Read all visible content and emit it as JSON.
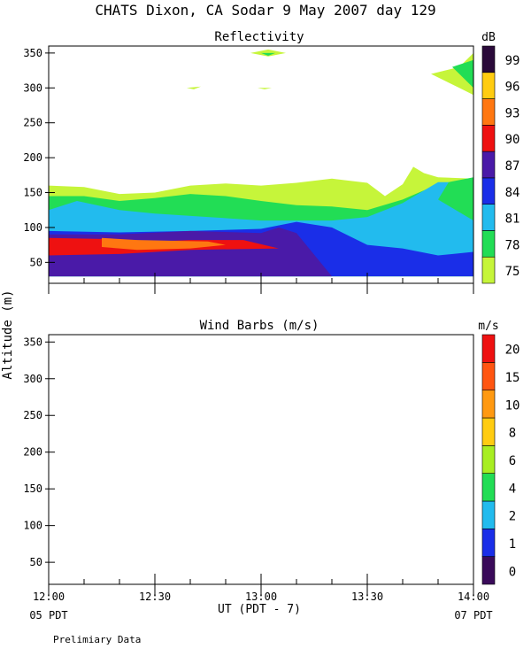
{
  "title": "CHATS Dixon, CA  Sodar   9 May 2007  day 129",
  "ylabel": "Altitude (m)",
  "footer_note": "Prelimiary Data",
  "chart_data": [
    {
      "type": "heatmap",
      "title": "Reflectivity",
      "x_ticks": [
        "12:00",
        "12:30",
        "13:00",
        "13:30",
        "14:00"
      ],
      "x_range_minutes_after_1200UT": [
        0,
        120
      ],
      "ylim": [
        20,
        360
      ],
      "y_ticks": [
        50,
        100,
        150,
        200,
        250,
        300,
        350
      ],
      "colorbar": {
        "unit": "dB",
        "levels": [
          75,
          78,
          81,
          84,
          87,
          90,
          93,
          96,
          99
        ],
        "colors": [
          "#c6f53a",
          "#22dd55",
          "#22bbee",
          "#1a2ee8",
          "#4a1aa8",
          "#ee1111",
          "#ff7711",
          "#ffcc11",
          "#2a0a3a"
        ]
      },
      "contours": [
        {
          "level": 75,
          "polygon": [
            [
              0,
              160
            ],
            [
              10,
              158
            ],
            [
              20,
              148
            ],
            [
              30,
              150
            ],
            [
              40,
              160
            ],
            [
              50,
              163
            ],
            [
              60,
              160
            ],
            [
              70,
              164
            ],
            [
              80,
              170
            ],
            [
              90,
              164
            ],
            [
              95,
              145
            ],
            [
              100,
              162
            ],
            [
              103,
              187
            ],
            [
              106,
              178
            ],
            [
              110,
              172
            ],
            [
              120,
              170
            ],
            [
              120,
              30
            ],
            [
              0,
              30
            ]
          ]
        },
        {
          "level": 78,
          "polygon": [
            [
              0,
              145
            ],
            [
              10,
              145
            ],
            [
              20,
              138
            ],
            [
              30,
              142
            ],
            [
              40,
              148
            ],
            [
              50,
              145
            ],
            [
              60,
              138
            ],
            [
              70,
              132
            ],
            [
              80,
              130
            ],
            [
              90,
              125
            ],
            [
              100,
              140
            ],
            [
              110,
              162
            ],
            [
              120,
              172
            ],
            [
              120,
              30
            ],
            [
              0,
              30
            ]
          ]
        },
        {
          "level": 81,
          "polygon": [
            [
              0,
              125
            ],
            [
              8,
              138
            ],
            [
              20,
              125
            ],
            [
              30,
              120
            ],
            [
              45,
              115
            ],
            [
              60,
              110
            ],
            [
              80,
              110
            ],
            [
              90,
              115
            ],
            [
              100,
              135
            ],
            [
              110,
              165
            ],
            [
              113,
              165
            ],
            [
              110,
              140
            ],
            [
              120,
              110
            ],
            [
              120,
              30
            ],
            [
              0,
              30
            ]
          ]
        },
        {
          "level": 84,
          "polygon": [
            [
              0,
              95
            ],
            [
              20,
              93
            ],
            [
              40,
              95
            ],
            [
              60,
              98
            ],
            [
              70,
              108
            ],
            [
              80,
              100
            ],
            [
              90,
              75
            ],
            [
              100,
              70
            ],
            [
              110,
              60
            ],
            [
              120,
              65
            ],
            [
              120,
              30
            ],
            [
              0,
              30
            ]
          ]
        },
        {
          "level": 87,
          "polygon": [
            [
              0,
              90
            ],
            [
              20,
              90
            ],
            [
              40,
              95
            ],
            [
              60,
              92
            ],
            [
              65,
              100
            ],
            [
              70,
              92
            ],
            [
              80,
              30
            ],
            [
              0,
              30
            ]
          ]
        },
        {
          "level": 90,
          "polygon": [
            [
              0,
              85
            ],
            [
              20,
              83
            ],
            [
              30,
              80
            ],
            [
              40,
              82
            ],
            [
              55,
              82
            ],
            [
              65,
              70
            ],
            [
              40,
              68
            ],
            [
              20,
              62
            ],
            [
              0,
              60
            ]
          ]
        },
        {
          "level": 93,
          "polygon": [
            [
              15,
              85
            ],
            [
              25,
              82
            ],
            [
              45,
              80
            ],
            [
              50,
              75
            ],
            [
              40,
              70
            ],
            [
              25,
              68
            ],
            [
              15,
              72
            ]
          ]
        }
      ],
      "upper_patches": [
        {
          "level": 75,
          "polygon": [
            [
              57,
              350
            ],
            [
              62,
              345
            ],
            [
              67,
              350
            ],
            [
              62,
              355
            ]
          ]
        },
        {
          "level": 78,
          "polygon": [
            [
              60,
              350
            ],
            [
              62,
              346
            ],
            [
              64,
              350
            ]
          ]
        },
        {
          "level": 75,
          "polygon": [
            [
              39,
              300
            ],
            [
              41,
              298
            ],
            [
              43,
              302
            ]
          ]
        },
        {
          "level": 75,
          "polygon": [
            [
              59,
              300
            ],
            [
              61,
              298
            ],
            [
              63,
              300
            ]
          ]
        },
        {
          "level": 75,
          "polygon": [
            [
              108,
              320
            ],
            [
              116,
              330
            ],
            [
              120,
              350
            ],
            [
              120,
              290
            ],
            [
              116,
              300
            ]
          ]
        },
        {
          "level": 78,
          "polygon": [
            [
              114,
              330
            ],
            [
              120,
              340
            ],
            [
              120,
              300
            ]
          ]
        }
      ]
    },
    {
      "type": "scatter",
      "title": "Wind Barbs (m/s)",
      "x_ticks": [
        "12:00",
        "12:30",
        "13:00",
        "13:30",
        "14:00"
      ],
      "x_range_minutes_after_1200UT": [
        0,
        120
      ],
      "ylim": [
        20,
        360
      ],
      "y_ticks": [
        50,
        100,
        150,
        200,
        250,
        300,
        350
      ],
      "points": [],
      "colorbar": {
        "unit": "m/s",
        "levels": [
          0,
          1,
          2,
          4,
          6,
          8,
          10,
          15,
          20
        ],
        "colors": [
          "#3a0a5a",
          "#1a2ee8",
          "#22bbee",
          "#22dd55",
          "#a8ee22",
          "#ffcc11",
          "#ff9911",
          "#ff5511",
          "#ee1111"
        ]
      }
    }
  ],
  "x_end_labels": {
    "left": "05 PDT",
    "center": "UT  (PDT - 7)",
    "right": "07 PDT"
  }
}
